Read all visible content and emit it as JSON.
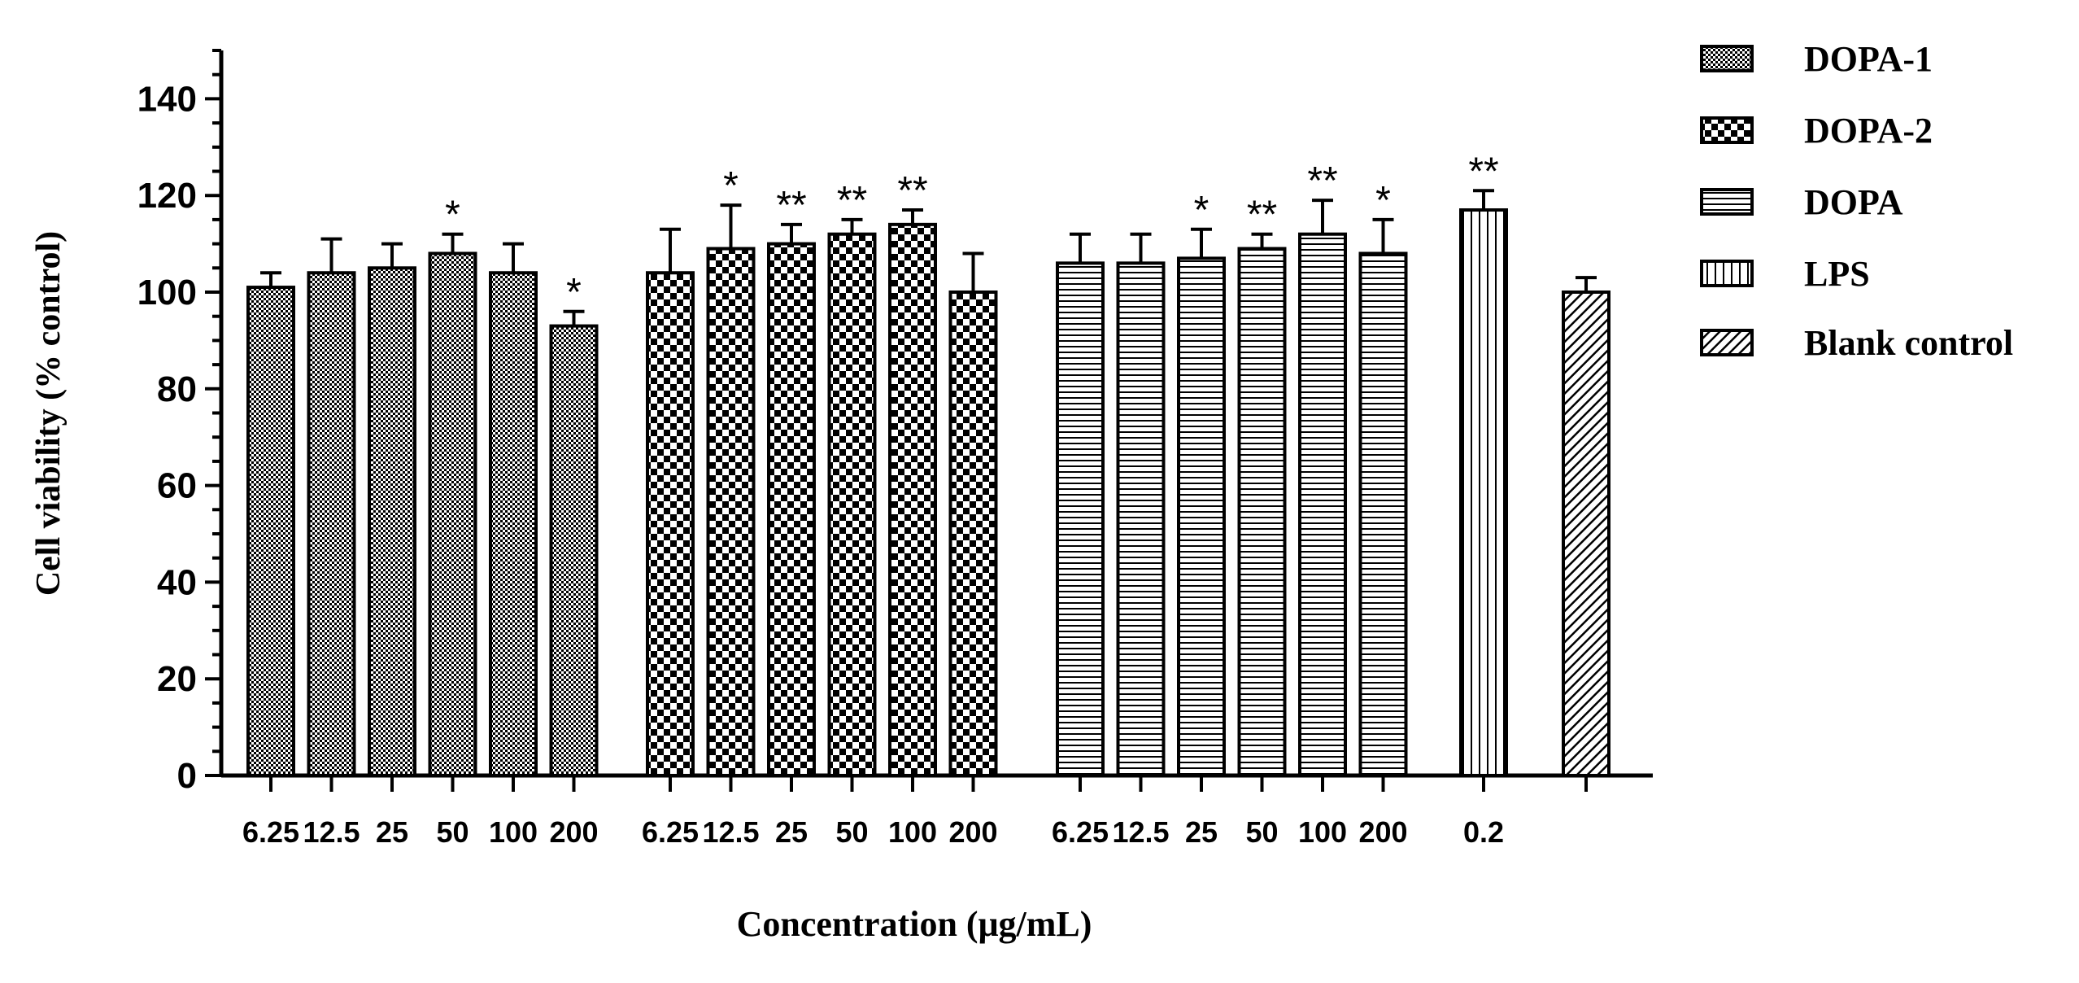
{
  "chart_data": {
    "type": "bar",
    "ylabel": "Cell viability (% control)",
    "xlabel": "Concentration (μg/mL)",
    "ylim": [
      0,
      150
    ],
    "yticks": [
      0,
      20,
      40,
      60,
      80,
      100,
      120,
      140
    ],
    "grid": false,
    "legend_position": "right",
    "colors": {
      "ink": "#000000",
      "fill": "#ffffff"
    },
    "series": [
      {
        "name": "DOPA-1",
        "pattern": "fine-checker",
        "categories": [
          "6.25",
          "12.5",
          "25",
          "50",
          "100",
          "200"
        ],
        "values": [
          101,
          104,
          105,
          108,
          104,
          93
        ],
        "errors": [
          3,
          7,
          5,
          4,
          6,
          3
        ],
        "significance": [
          "",
          "",
          "",
          "*",
          "",
          "*"
        ]
      },
      {
        "name": "DOPA-2",
        "pattern": "coarse-checker",
        "categories": [
          "6.25",
          "12.5",
          "25",
          "50",
          "100",
          "200"
        ],
        "values": [
          104,
          109,
          110,
          112,
          114,
          100
        ],
        "errors": [
          9,
          9,
          4,
          3,
          3,
          8
        ],
        "significance": [
          "",
          "*",
          "**",
          "**",
          "**",
          ""
        ]
      },
      {
        "name": "DOPA",
        "pattern": "horizontal-lines",
        "categories": [
          "6.25",
          "12.5",
          "25",
          "50",
          "100",
          "200"
        ],
        "values": [
          106,
          106,
          107,
          109,
          112,
          108
        ],
        "errors": [
          6,
          6,
          6,
          3,
          7,
          7
        ],
        "significance": [
          "",
          "",
          "*",
          "**",
          "**",
          "*"
        ]
      },
      {
        "name": "LPS",
        "pattern": "vertical-lines",
        "categories": [
          "0.2"
        ],
        "values": [
          117
        ],
        "errors": [
          4
        ],
        "significance": [
          "**"
        ]
      },
      {
        "name": "Blank control",
        "pattern": "diagonal-lines",
        "categories": [
          ""
        ],
        "values": [
          100
        ],
        "errors": [
          3
        ],
        "significance": [
          ""
        ]
      }
    ]
  }
}
